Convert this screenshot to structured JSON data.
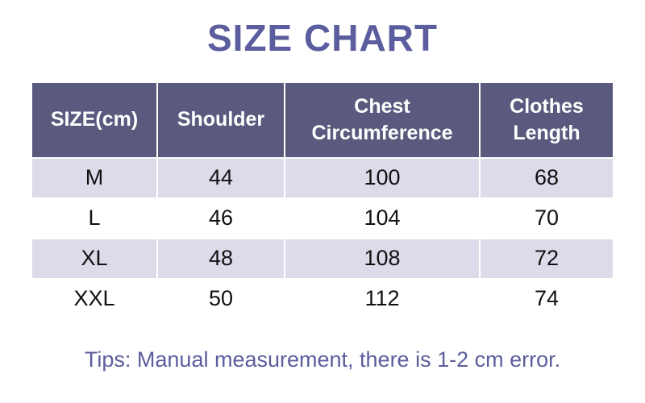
{
  "title": "SIZE CHART",
  "tip": "Tips: Manual measurement, there is 1-2 cm error.",
  "colors": {
    "accent_purple": "#5b5d9e",
    "header_bg": "#5a5a7e",
    "header_text": "#ffffff",
    "row_alt_bg": "#dbdbe9",
    "row_bg": "#ffffff",
    "body_text": "#111111"
  },
  "chart_data": {
    "type": "table",
    "title": "SIZE CHART",
    "columns": [
      "SIZE(cm)",
      "Shoulder",
      "Chest Circumference",
      "Clothes Length"
    ],
    "rows": [
      [
        "M",
        "44",
        "100",
        "68"
      ],
      [
        "L",
        "46",
        "104",
        "70"
      ],
      [
        "XL",
        "48",
        "108",
        "72"
      ],
      [
        "XXL",
        "50",
        "112",
        "74"
      ]
    ],
    "footnote": "Tips: Manual measurement, there is 1-2 cm error."
  }
}
